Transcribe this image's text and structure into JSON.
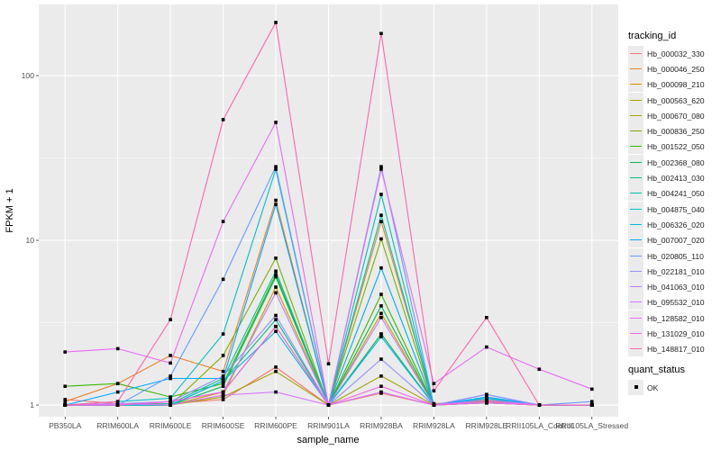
{
  "chart_data": {
    "type": "line",
    "xlabel": "sample_name",
    "ylabel": "FPKM + 1",
    "y_scale": "log10",
    "ylim": [
      0.85,
      270
    ],
    "y_ticks": [
      1,
      10,
      100
    ],
    "y_tick_labels": [
      "1",
      "10",
      "100"
    ],
    "grid": true,
    "legend_placement": "right",
    "categories": [
      "PB350LA",
      "RRIM600LA",
      "RRIM600LE",
      "RRIM600SE",
      "RRIM600PE",
      "RRIM901LA",
      "RRIM928BA",
      "RRIM928LA",
      "RRIM928LE",
      "RRII105LA_Control",
      "RRII105LA_Stressed"
    ],
    "series": [
      {
        "name": "Hb_000032_330",
        "color": "#F8766D",
        "values": [
          1.08,
          1.02,
          1.02,
          1.08,
          1.7,
          1.0,
          1.18,
          1.0,
          1.03,
          1.0,
          1.0
        ]
      },
      {
        "name": "Hb_000046_250",
        "color": "#EA8331",
        "values": [
          1.05,
          1.35,
          2.0,
          1.6,
          17.5,
          1.0,
          13.0,
          1.02,
          1.06,
          1.0,
          1.0
        ]
      },
      {
        "name": "Hb_000098_210",
        "color": "#D89000",
        "values": [
          1.0,
          1.0,
          1.0,
          1.15,
          5.2,
          1.0,
          3.6,
          1.0,
          1.03,
          1.0,
          1.0
        ]
      },
      {
        "name": "Hb_000563_620",
        "color": "#C09B00",
        "values": [
          1.0,
          1.0,
          1.0,
          1.2,
          3.0,
          1.0,
          2.7,
          1.0,
          1.03,
          1.0,
          1.0
        ]
      },
      {
        "name": "Hb_000670_080",
        "color": "#A3A500",
        "values": [
          1.0,
          1.0,
          1.0,
          1.12,
          1.6,
          1.0,
          1.5,
          1.0,
          1.03,
          1.0,
          1.0
        ]
      },
      {
        "name": "Hb_000836_250",
        "color": "#7CAE00",
        "values": [
          1.0,
          1.0,
          1.0,
          2.0,
          7.8,
          1.0,
          10.2,
          1.0,
          1.05,
          1.0,
          1.0
        ]
      },
      {
        "name": "Hb_001522_050",
        "color": "#39B600",
        "values": [
          1.3,
          1.35,
          1.12,
          1.35,
          6.2,
          1.0,
          4.7,
          1.0,
          1.08,
          1.0,
          1.0
        ]
      },
      {
        "name": "Hb_002368_080",
        "color": "#00BB4E",
        "values": [
          1.0,
          1.0,
          1.0,
          1.3,
          6.0,
          1.0,
          4.0,
          1.0,
          1.05,
          1.0,
          1.0
        ]
      },
      {
        "name": "Hb_002413_030",
        "color": "#00BF7D",
        "values": [
          1.0,
          1.0,
          1.0,
          1.4,
          3.3,
          1.0,
          2.7,
          1.0,
          1.08,
          1.0,
          1.0
        ]
      },
      {
        "name": "Hb_004241_050",
        "color": "#00C1A3",
        "values": [
          1.0,
          1.0,
          1.02,
          1.45,
          6.5,
          1.0,
          14.2,
          1.0,
          1.1,
          1.0,
          1.0
        ]
      },
      {
        "name": "Hb_004875_040",
        "color": "#00BFC4",
        "values": [
          1.0,
          1.05,
          1.1,
          2.7,
          27.0,
          1.0,
          19.0,
          1.0,
          1.1,
          1.0,
          1.0
        ]
      },
      {
        "name": "Hb_006326_020",
        "color": "#00B8E5",
        "values": [
          1.0,
          1.0,
          1.0,
          1.4,
          2.8,
          1.0,
          2.6,
          1.0,
          1.08,
          1.0,
          1.0
        ]
      },
      {
        "name": "Hb_007007_020",
        "color": "#00ABFD",
        "values": [
          1.0,
          1.2,
          1.45,
          1.45,
          16.5,
          1.0,
          6.8,
          1.0,
          1.12,
          1.0,
          1.0
        ]
      },
      {
        "name": "Hb_020805_110",
        "color": "#619CFF",
        "values": [
          1.0,
          1.0,
          1.5,
          5.8,
          28.0,
          1.0,
          28.0,
          1.0,
          1.16,
          1.0,
          1.05
        ]
      },
      {
        "name": "Hb_022181_010",
        "color": "#9590FF",
        "values": [
          1.0,
          1.02,
          1.05,
          1.5,
          3.5,
          1.0,
          1.9,
          1.0,
          1.16,
          1.0,
          1.0
        ]
      },
      {
        "name": "Hb_041063_010",
        "color": "#BA83FF",
        "values": [
          1.0,
          1.0,
          1.05,
          1.2,
          4.8,
          1.0,
          3.4,
          1.0,
          1.08,
          1.0,
          1.0
        ]
      },
      {
        "name": "Hb_095532_010",
        "color": "#D575FE",
        "values": [
          1.0,
          1.02,
          1.0,
          1.15,
          1.2,
          1.0,
          1.2,
          1.0,
          1.03,
          1.0,
          1.0
        ]
      },
      {
        "name": "Hb_128582_010",
        "color": "#E76BF3",
        "values": [
          2.1,
          2.2,
          1.8,
          13.0,
          52.0,
          1.0,
          27.0,
          1.35,
          2.25,
          1.65,
          1.25
        ]
      },
      {
        "name": "Hb_131029_010",
        "color": "#F564E3",
        "values": [
          1.0,
          1.0,
          1.05,
          1.2,
          3.0,
          1.0,
          1.3,
          1.0,
          1.05,
          1.0,
          1.0
        ]
      },
      {
        "name": "Hb_148817_010",
        "color": "#FF65AC",
        "values": [
          1.0,
          1.05,
          3.3,
          54.0,
          210.0,
          1.78,
          180.0,
          1.22,
          3.4,
          1.0,
          1.0
        ]
      }
    ],
    "legend_titles": {
      "color": "tracking_id",
      "shape": "quant_status"
    },
    "shape_legend": {
      "label": "OK",
      "color": "#000000"
    }
  }
}
